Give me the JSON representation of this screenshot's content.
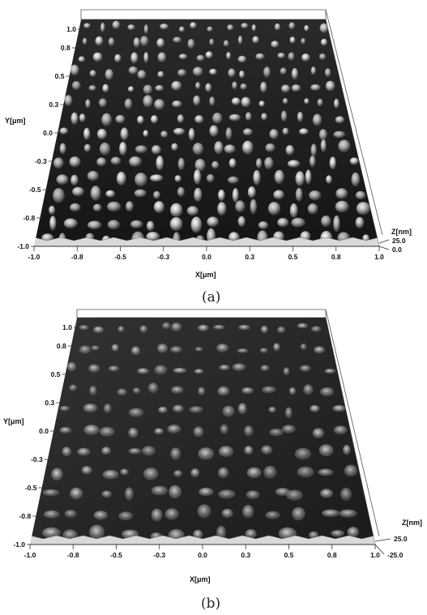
{
  "panels": [
    {
      "id": "a",
      "caption": "(a)",
      "x_axis": {
        "label": "X[μm]",
        "ticks": [
          "-1.0",
          "-0.8",
          "-0.5",
          "-0.3",
          "0.0",
          "0.3",
          "0.5",
          "0.8",
          "1.0"
        ]
      },
      "y_axis": {
        "label": "Y[μm]",
        "ticks": [
          "1.0",
          "0.8",
          "0.5",
          "0.3",
          "0.0",
          "-0.3",
          "-0.5",
          "-0.8",
          "-1.0"
        ]
      },
      "z_axis": {
        "label": "Z[nm]",
        "ticks": [
          "25.0",
          "0.0"
        ]
      },
      "surface": {
        "feature_density": "high",
        "relief": "distinct rounded grains",
        "shade": "#bdbdbd"
      }
    },
    {
      "id": "b",
      "caption": "(b)",
      "x_axis": {
        "label": "X[μm]",
        "ticks": [
          "-1.0",
          "-0.8",
          "-0.5",
          "-0.3",
          "0.0",
          "0.3",
          "0.5",
          "0.8",
          "1.0"
        ]
      },
      "y_axis": {
        "label": "Y[μm]",
        "ticks": [
          "1.0",
          "0.8",
          "0.5",
          "0.3",
          "0.0",
          "-0.3",
          "-0.5",
          "-0.8",
          "-1.0"
        ]
      },
      "z_axis": {
        "label": "Z[nm]",
        "ticks": [
          "25.0",
          "-25.0"
        ]
      },
      "surface": {
        "feature_density": "medium",
        "relief": "smoothed, irregular grains",
        "shade": "#8a8a8a"
      }
    }
  ]
}
